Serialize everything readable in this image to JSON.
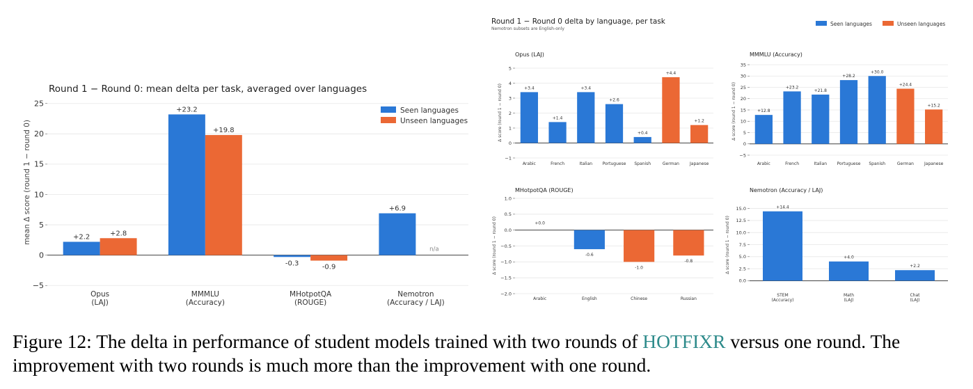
{
  "colors": {
    "seen": "#2a78d6",
    "unseen": "#eb6834",
    "axis": "#333333",
    "grid": "#e6e6e6",
    "text": "#333333"
  },
  "caption": {
    "prefix": "Figure 12: The delta in performance of student models trained with two rounds of ",
    "highlight": "HOTFIXR",
    "suffix": " versus one round. The improvement with two rounds is much more than the improvement with one round."
  },
  "right_panel": {
    "title": "Round 1 − Round 0 delta by language, per task",
    "subtitle": "Nemotron subsets are English-only"
  },
  "chart_data": [
    {
      "id": "main",
      "type": "bar",
      "title": "Round 1 − Round 0: mean delta per task, averaged over languages",
      "ylabel": "mean Δ score  (round 1 − round 0)",
      "xlabel": "",
      "categories": [
        "Opus\n(LAJ)",
        "MMMLU\n(Accuracy)",
        "MHotpotQA\n(ROUGE)",
        "Nemotron\n(Accuracy / LAJ)"
      ],
      "series": [
        {
          "name": "Seen languages",
          "values": [
            2.2,
            23.2,
            -0.3,
            6.9
          ],
          "labels": [
            "+2.2",
            "+23.2",
            "-0.3",
            "+6.9"
          ]
        },
        {
          "name": "Unseen languages",
          "values": [
            2.8,
            19.8,
            -0.9,
            null
          ],
          "labels": [
            "+2.8",
            "+19.8",
            "-0.9",
            "n/a"
          ]
        }
      ],
      "ylim": [
        -5.2,
        26
      ],
      "yticks": [
        -5,
        0,
        5,
        10,
        15,
        20,
        25
      ],
      "ytick_labels": [
        "−5",
        "0",
        "5",
        "10",
        "15",
        "20",
        "25"
      ],
      "legend": "top-right",
      "grid": true
    },
    {
      "id": "opus",
      "type": "bar",
      "title": "Opus (LAJ)",
      "ylabel": "Δ score  (round 1 − round 0)",
      "categories": [
        "Arabic",
        "French",
        "Italian",
        "Portuguese",
        "Spanish",
        "German",
        "Japanese"
      ],
      "groups": [
        "seen",
        "seen",
        "seen",
        "seen",
        "seen",
        "unseen",
        "unseen"
      ],
      "values": [
        3.4,
        1.4,
        3.4,
        2.6,
        0.4,
        4.4,
        1.2
      ],
      "labels": [
        "+3.4",
        "+1.4",
        "+3.4",
        "+2.6",
        "+0.4",
        "+4.4",
        "+1.2"
      ],
      "ylim": [
        -1,
        5
      ],
      "yticks": [
        -1,
        0,
        1,
        2,
        3,
        4,
        5
      ],
      "ytick_labels": [
        "−1",
        "0",
        "1",
        "2",
        "3",
        "4",
        "5"
      ],
      "grid": true
    },
    {
      "id": "mmmlu",
      "type": "bar",
      "title": "MMMLU (Accuracy)",
      "ylabel": "Δ score  (round 1 − round 0)",
      "categories": [
        "Arabic",
        "French",
        "Italian",
        "Portuguese",
        "Spanish",
        "German",
        "Japanese"
      ],
      "groups": [
        "seen",
        "seen",
        "seen",
        "seen",
        "seen",
        "unseen",
        "unseen"
      ],
      "values": [
        12.8,
        23.2,
        21.8,
        28.2,
        30.0,
        24.4,
        15.2
      ],
      "labels": [
        "+12.8",
        "+23.2",
        "+21.8",
        "+28.2",
        "+30.0",
        "+24.4",
        "+15.2"
      ],
      "ylim": [
        -5,
        35
      ],
      "yticks": [
        -5,
        0,
        5,
        10,
        15,
        20,
        25,
        30,
        35
      ],
      "ytick_labels": [
        "−5",
        "0",
        "5",
        "10",
        "15",
        "20",
        "25",
        "30",
        "35"
      ],
      "grid": true
    },
    {
      "id": "mhotpot",
      "type": "bar",
      "title": "MHotpotQA (ROUGE)",
      "ylabel": "Δ score  (round 1 − round 0)",
      "categories": [
        "Arabic",
        "English",
        "Chinese",
        "Russian"
      ],
      "groups": [
        "seen",
        "seen",
        "unseen",
        "unseen"
      ],
      "values": [
        0.0,
        -0.6,
        -1.0,
        -0.8
      ],
      "labels": [
        "+0.0",
        "-0.6",
        "-1.0",
        "-0.8"
      ],
      "ylim": [
        -2,
        1
      ],
      "yticks": [
        -2,
        -1.5,
        -1,
        -0.5,
        0,
        0.5,
        1
      ],
      "ytick_labels": [
        "−2.0",
        "−1.5",
        "−1.0",
        "−0.5",
        "0.0",
        "0.5",
        "1.0"
      ],
      "grid": true
    },
    {
      "id": "nemotron",
      "type": "bar",
      "title": "Nemotron (Accuracy / LAJ)",
      "ylabel": "Δ score  (round 1 − round 0)",
      "categories": [
        "STEM\n(Accuracy)",
        "Math\n(LAJ)",
        "Chat\n(LAJ)"
      ],
      "groups": [
        "seen",
        "seen",
        "seen"
      ],
      "values": [
        14.4,
        4.0,
        2.2
      ],
      "labels": [
        "+14.4",
        "+4.0",
        "+2.2"
      ],
      "ylim": [
        -0.8,
        15.8
      ],
      "yticks": [
        0,
        2.5,
        5,
        7.5,
        10,
        12.5,
        15
      ],
      "ytick_labels": [
        "0.0",
        "2.5",
        "5.0",
        "7.5",
        "10.0",
        "12.5",
        "15.0"
      ],
      "grid": true
    }
  ]
}
